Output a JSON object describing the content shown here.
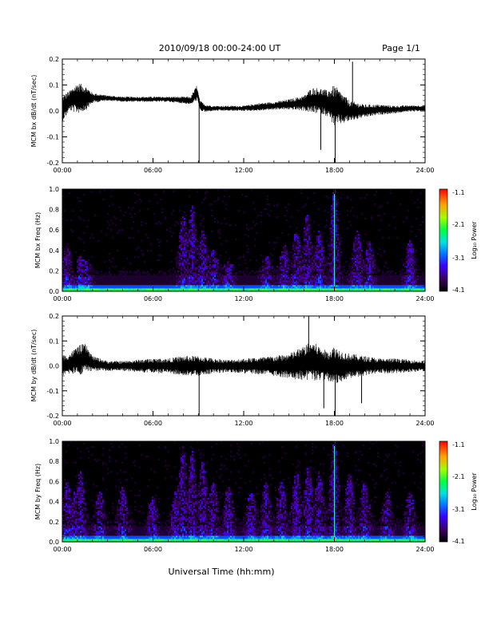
{
  "header": {
    "title": "2010/09/18  00:00-24:00 UT",
    "page": "Page 1/1"
  },
  "xaxis": {
    "label": "Universal Time (hh:mm)",
    "ticks": [
      "00:00",
      "06:00",
      "12:00",
      "18:00",
      "24:00"
    ],
    "range_hours": [
      0,
      24
    ]
  },
  "colorbar": {
    "label": "Log₁₀ Power",
    "ticks": [
      "-1.1",
      "-2.1",
      "-3.1",
      "-4.1"
    ],
    "range": [
      -4.1,
      -1.1
    ]
  },
  "chart_data": [
    {
      "type": "line",
      "ylabel": "MCM bx dB/dt (nT/sec)",
      "ylim": [
        -0.2,
        0.2
      ],
      "yticks": [
        "0.2",
        "0.1",
        "0.0",
        "-0.1",
        "-0.2"
      ],
      "x_hours": [
        0,
        0.5,
        1,
        1.5,
        2,
        3,
        4,
        5,
        6,
        7,
        8.5,
        8.9,
        9.1,
        9.5,
        10,
        11,
        12,
        13,
        14,
        15,
        16,
        16.5,
        17,
        17.5,
        18,
        18.5,
        19,
        20,
        21,
        22,
        23,
        24
      ],
      "y_mean": [
        0.01,
        0.04,
        0.05,
        0.05,
        0.05,
        0.05,
        0.045,
        0.045,
        0.045,
        0.045,
        0.04,
        0.07,
        0.02,
        0.01,
        0.01,
        0.01,
        0.01,
        0.015,
        0.02,
        0.025,
        0.03,
        0.04,
        0.04,
        0.03,
        0.02,
        0.01,
        0.0,
        0.0,
        0.005,
        0.005,
        0.01,
        0.01
      ],
      "y_spread": [
        0.05,
        0.04,
        0.06,
        0.05,
        0.02,
        0.01,
        0.01,
        0.01,
        0.01,
        0.01,
        0.015,
        0.03,
        0.02,
        0.015,
        0.01,
        0.01,
        0.01,
        0.015,
        0.015,
        0.02,
        0.03,
        0.05,
        0.05,
        0.05,
        0.08,
        0.06,
        0.04,
        0.025,
        0.02,
        0.015,
        0.012,
        0.012
      ],
      "spikes": [
        {
          "x": 9.05,
          "y": -0.2
        },
        {
          "x": 18.05,
          "y": -0.2
        },
        {
          "x": 19.2,
          "y": 0.19
        },
        {
          "x": 17.1,
          "y": -0.15
        }
      ]
    },
    {
      "type": "heatmap",
      "ylabel": "MCM bx Freq (Hz)",
      "ylim": [
        0,
        1.0
      ],
      "yticks": [
        "1.0",
        "0.8",
        "0.6",
        "0.4",
        "0.2",
        "0.0"
      ],
      "value": "Log10 Power",
      "zlim": [
        -4.1,
        -1.1
      ],
      "activity_hours": [
        0.3,
        1.2,
        1.6,
        8.0,
        8.6,
        9.3,
        10.0,
        11.0,
        13.5,
        14.7,
        15.5,
        16.2,
        17.0,
        18.0,
        19.5,
        20.3,
        23.0
      ],
      "activity_heights_hz": [
        0.45,
        0.35,
        0.3,
        0.75,
        0.85,
        0.6,
        0.4,
        0.3,
        0.35,
        0.45,
        0.6,
        0.75,
        0.6,
        1.0,
        0.6,
        0.5,
        0.5
      ],
      "line_hour": 18.0
    },
    {
      "type": "line",
      "ylabel": "MCM by dB/dt (nT/sec)",
      "ylim": [
        -0.2,
        0.2
      ],
      "yticks": [
        "0.2",
        "0.1",
        "0.0",
        "-0.1",
        "-0.2"
      ],
      "x_hours": [
        0,
        0.5,
        1,
        1.5,
        2,
        3,
        4,
        5,
        6,
        7,
        8,
        9,
        10,
        11,
        12,
        13,
        14,
        15,
        16,
        16.5,
        17,
        17.5,
        18,
        18.5,
        19,
        20,
        21,
        22,
        23,
        24
      ],
      "y_mean": [
        0.0,
        0.01,
        0.02,
        0.03,
        0.01,
        0.0,
        0.0,
        0.0,
        0.0,
        0.0,
        0.0,
        0.0,
        0.0,
        0.0,
        0.0,
        0.0,
        0.0,
        0.0,
        0.01,
        0.02,
        0.01,
        0.0,
        0.0,
        0.0,
        0.0,
        0.0,
        0.0,
        0.0,
        0.0,
        0.0
      ],
      "y_spread": [
        0.04,
        0.04,
        0.06,
        0.06,
        0.03,
        0.02,
        0.02,
        0.025,
        0.03,
        0.03,
        0.04,
        0.04,
        0.03,
        0.025,
        0.03,
        0.035,
        0.04,
        0.05,
        0.07,
        0.08,
        0.07,
        0.06,
        0.08,
        0.06,
        0.05,
        0.04,
        0.03,
        0.03,
        0.025,
        0.02
      ],
      "spikes": [
        {
          "x": 9.05,
          "y": -0.2
        },
        {
          "x": 16.3,
          "y": 0.2
        },
        {
          "x": 18.05,
          "y": -0.2
        },
        {
          "x": 17.3,
          "y": -0.17
        },
        {
          "x": 19.8,
          "y": -0.15
        }
      ]
    },
    {
      "type": "heatmap",
      "ylabel": "MCM by Freq (Hz)",
      "ylim": [
        0,
        1.0
      ],
      "yticks": [
        "1.0",
        "0.8",
        "0.6",
        "0.4",
        "0.2",
        "0.0"
      ],
      "value": "Log10 Power",
      "zlim": [
        -4.1,
        -1.1
      ],
      "activity_hours": [
        0.3,
        0.8,
        1.2,
        2.5,
        4.0,
        6.0,
        7.5,
        8.0,
        8.6,
        9.3,
        10.0,
        11.0,
        12.5,
        13.5,
        14.5,
        15.5,
        16.3,
        17.0,
        18.0,
        19.0,
        20.0,
        21.5,
        23.0
      ],
      "activity_heights_hz": [
        0.6,
        0.5,
        0.7,
        0.5,
        0.55,
        0.45,
        0.5,
        0.95,
        0.9,
        0.8,
        0.6,
        0.55,
        0.5,
        0.6,
        0.6,
        0.7,
        0.75,
        0.7,
        1.0,
        0.7,
        0.6,
        0.5,
        0.5
      ],
      "line_hour": 18.0
    }
  ]
}
